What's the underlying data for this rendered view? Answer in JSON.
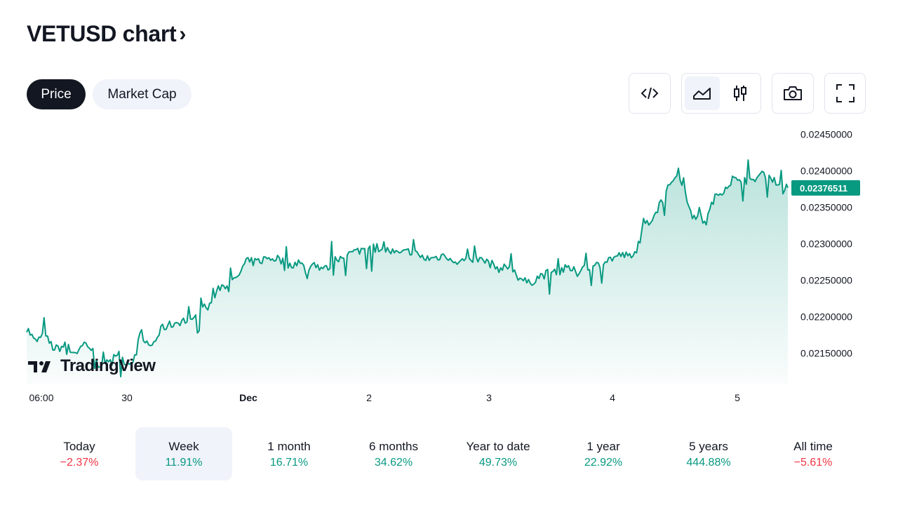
{
  "header": {
    "title": "VETUSD chart",
    "chevron": "›"
  },
  "tabs": [
    {
      "label": "Price",
      "active": true
    },
    {
      "label": "Market Cap",
      "active": false
    }
  ],
  "toolbar": {
    "embed_icon": "code-brackets-icon",
    "area_icon": "area-chart-icon",
    "candles_icon": "candlestick-icon",
    "snapshot_icon": "camera-icon",
    "fullscreen_icon": "fullscreen-icon"
  },
  "watermark": "TradingView",
  "colors": {
    "line": "#089981",
    "positive": "#089981",
    "negative": "#f23645",
    "dark": "#131722"
  },
  "chart_data": {
    "type": "area",
    "series": [
      {
        "name": "VETUSD",
        "color": "#089981"
      }
    ],
    "x_ticks": [
      "06:00",
      "30",
      "Dec",
      "2",
      "3",
      "4",
      "5"
    ],
    "y_ticks": [
      "0.02450000",
      "0.02400000",
      "0.02350000",
      "0.02300000",
      "0.02250000",
      "0.02200000",
      "0.02150000"
    ],
    "ylim": [
      0.02107,
      0.02461
    ],
    "last_price": "0.02376511",
    "anchors": [
      [
        0,
        0.02185
      ],
      [
        12,
        0.02165
      ],
      [
        25,
        0.02175
      ],
      [
        40,
        0.02155
      ],
      [
        55,
        0.0216
      ],
      [
        70,
        0.0215
      ],
      [
        85,
        0.02165
      ],
      [
        100,
        0.02145
      ],
      [
        110,
        0.02125
      ],
      [
        118,
        0.02145
      ],
      [
        130,
        0.0215
      ],
      [
        145,
        0.02135
      ],
      [
        160,
        0.0215
      ],
      [
        170,
        0.02165
      ],
      [
        180,
        0.0216
      ],
      [
        195,
        0.02185
      ],
      [
        210,
        0.0219
      ],
      [
        225,
        0.02195
      ],
      [
        240,
        0.0219
      ],
      [
        250,
        0.0222
      ],
      [
        260,
        0.0221
      ],
      [
        275,
        0.0224
      ],
      [
        290,
        0.02245
      ],
      [
        300,
        0.0225
      ],
      [
        315,
        0.02275
      ],
      [
        330,
        0.02275
      ],
      [
        345,
        0.0228
      ],
      [
        360,
        0.0228
      ],
      [
        375,
        0.0227
      ],
      [
        390,
        0.02275
      ],
      [
        400,
        0.02265
      ],
      [
        415,
        0.0227
      ],
      [
        430,
        0.02265
      ],
      [
        445,
        0.0228
      ],
      [
        460,
        0.02285
      ],
      [
        475,
        0.0229
      ],
      [
        490,
        0.02295
      ],
      [
        505,
        0.02295
      ],
      [
        520,
        0.0229
      ],
      [
        535,
        0.02285
      ],
      [
        550,
        0.0229
      ],
      [
        570,
        0.0228
      ],
      [
        585,
        0.0228
      ],
      [
        600,
        0.02285
      ],
      [
        620,
        0.02275
      ],
      [
        640,
        0.0228
      ],
      [
        660,
        0.02275
      ],
      [
        680,
        0.02265
      ],
      [
        695,
        0.0227
      ],
      [
        705,
        0.02255
      ],
      [
        720,
        0.02245
      ],
      [
        735,
        0.02255
      ],
      [
        750,
        0.0226
      ],
      [
        765,
        0.02265
      ],
      [
        780,
        0.02265
      ],
      [
        790,
        0.0226
      ],
      [
        800,
        0.0227
      ],
      [
        810,
        0.02265
      ],
      [
        825,
        0.02275
      ],
      [
        840,
        0.0228
      ],
      [
        855,
        0.02285
      ],
      [
        870,
        0.0228
      ],
      [
        885,
        0.0232
      ],
      [
        900,
        0.0234
      ],
      [
        915,
        0.02365
      ],
      [
        925,
        0.02385
      ],
      [
        935,
        0.024
      ],
      [
        945,
        0.0237
      ],
      [
        955,
        0.0234
      ],
      [
        965,
        0.02335
      ],
      [
        975,
        0.0233
      ],
      [
        985,
        0.0236
      ],
      [
        995,
        0.0237
      ],
      [
        1010,
        0.02385
      ],
      [
        1025,
        0.0239
      ],
      [
        1040,
        0.02385
      ],
      [
        1055,
        0.02395
      ],
      [
        1070,
        0.0239
      ],
      [
        1080,
        0.02375
      ],
      [
        1090,
        0.0238
      ]
    ]
  },
  "performance": [
    {
      "label": "Today",
      "value": "−2.37%",
      "trend": "negative",
      "selected": false
    },
    {
      "label": "Week",
      "value": "11.91%",
      "trend": "positive",
      "selected": true
    },
    {
      "label": "1 month",
      "value": "16.71%",
      "trend": "positive",
      "selected": false
    },
    {
      "label": "6 months",
      "value": "34.62%",
      "trend": "positive",
      "selected": false
    },
    {
      "label": "Year to date",
      "value": "49.73%",
      "trend": "positive",
      "selected": false
    },
    {
      "label": "1 year",
      "value": "22.92%",
      "trend": "positive",
      "selected": false
    },
    {
      "label": "5 years",
      "value": "444.88%",
      "trend": "positive",
      "selected": false
    },
    {
      "label": "All time",
      "value": "−5.61%",
      "trend": "negative",
      "selected": false
    }
  ]
}
